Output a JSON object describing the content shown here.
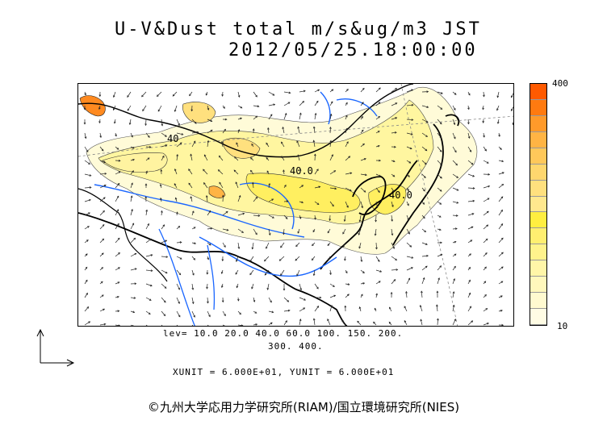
{
  "title_line1": "U-V&Dust total m/s&ug/m3 JST",
  "title_line2": "2012/05/25.18:00:00",
  "colorbar": {
    "max_label": "400",
    "min_label": "10",
    "colors": [
      "#ff5a00",
      "#ff7a10",
      "#ff9a2a",
      "#ffb444",
      "#ffc85a",
      "#ffd76e",
      "#ffe07e",
      "#ffe88e",
      "#ffee40",
      "#ffef70",
      "#fff38c",
      "#fff6a8",
      "#fff8bc",
      "#fffad0",
      "#fffce4"
    ]
  },
  "levels_line1": "lev= 10.0 20.0 40.0 60.0 100. 150. 200.",
  "levels_line2": "300. 400.",
  "units_line": "XUNIT = 6.000E+01, YUNIT = 6.000E+01",
  "contour_labels": [
    "40",
    "40.0",
    "40.0"
  ],
  "copyright": "©九州大学応用力学研究所(RIAM)/国立環境研究所(NIES)",
  "palette": {
    "coast": "#000000",
    "river": "#1a66ff",
    "light": "#fffbd8",
    "mid": "#fff6a0",
    "strong": "#ffef60",
    "peak": "#ff8a20"
  }
}
